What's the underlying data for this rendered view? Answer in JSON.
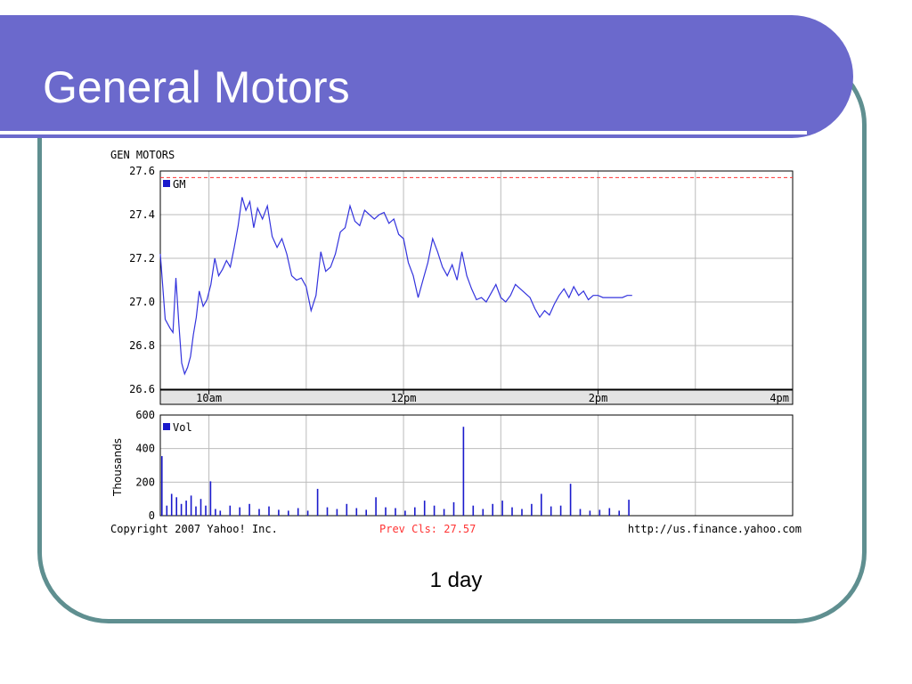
{
  "slide": {
    "title": "General Motors",
    "caption": "1 day"
  },
  "colors": {
    "title_bar": "#6b69cc",
    "frame_border": "#5f8f90",
    "series": "#3333dd",
    "prev_close_line": "#ff3333"
  },
  "chart_data": [
    {
      "type": "line",
      "title": "GEN MOTORS",
      "legend": "GM",
      "legend_position": "top-left",
      "grid": true,
      "ylim": [
        26.6,
        27.6
      ],
      "yticks": [
        "27.6",
        "27.4",
        "27.2",
        "27.0",
        "26.8",
        "26.6"
      ],
      "x_range_hours": [
        9.5,
        16.0
      ],
      "xticks": [
        "10am",
        "12pm",
        "2pm",
        "4pm"
      ],
      "reference_line": {
        "label": "Prev Cls: 27.57",
        "value": 27.57
      },
      "series": [
        {
          "name": "GM",
          "x": [
            9.5,
            9.52,
            9.55,
            9.6,
            9.63,
            9.66,
            9.69,
            9.72,
            9.75,
            9.78,
            9.81,
            9.84,
            9.87,
            9.9,
            9.94,
            9.98,
            10.02,
            10.06,
            10.1,
            10.14,
            10.18,
            10.22,
            10.26,
            10.3,
            10.34,
            10.38,
            10.42,
            10.46,
            10.5,
            10.55,
            10.6,
            10.65,
            10.7,
            10.75,
            10.8,
            10.85,
            10.9,
            10.95,
            11.0,
            11.05,
            11.1,
            11.15,
            11.2,
            11.25,
            11.3,
            11.35,
            11.4,
            11.45,
            11.5,
            11.55,
            11.6,
            11.65,
            11.7,
            11.75,
            11.8,
            11.85,
            11.9,
            11.95,
            12.0,
            12.05,
            12.1,
            12.15,
            12.2,
            12.25,
            12.3,
            12.35,
            12.4,
            12.45,
            12.5,
            12.55,
            12.6,
            12.65,
            12.7,
            12.75,
            12.8,
            12.85,
            12.9,
            12.95,
            13.0,
            13.05,
            13.1,
            13.15,
            13.2,
            13.25,
            13.3,
            13.35,
            13.4,
            13.45,
            13.5,
            13.55,
            13.6,
            13.65,
            13.7,
            13.75,
            13.8,
            13.85,
            13.9,
            13.95,
            14.0,
            14.05,
            14.1,
            14.15,
            14.2,
            14.25,
            14.3,
            14.35
          ],
          "values": [
            27.22,
            27.1,
            26.92,
            26.88,
            26.86,
            27.11,
            26.9,
            26.72,
            26.67,
            26.7,
            26.75,
            26.85,
            26.93,
            27.05,
            26.98,
            27.01,
            27.08,
            27.2,
            27.12,
            27.15,
            27.19,
            27.16,
            27.25,
            27.35,
            27.48,
            27.42,
            27.46,
            27.34,
            27.43,
            27.38,
            27.44,
            27.3,
            27.25,
            27.29,
            27.22,
            27.12,
            27.1,
            27.11,
            27.07,
            26.96,
            27.03,
            27.23,
            27.14,
            27.16,
            27.22,
            27.32,
            27.34,
            27.44,
            27.37,
            27.35,
            27.42,
            27.4,
            27.38,
            27.4,
            27.41,
            27.36,
            27.38,
            27.31,
            27.29,
            27.18,
            27.12,
            27.02,
            27.1,
            27.18,
            27.29,
            27.23,
            27.16,
            27.12,
            27.17,
            27.1,
            27.23,
            27.12,
            27.06,
            27.01,
            27.02,
            27.0,
            27.04,
            27.08,
            27.02,
            27.0,
            27.03,
            27.08,
            27.06,
            27.04,
            27.02,
            26.97,
            26.93,
            26.96,
            26.94,
            26.99,
            27.03,
            27.06,
            27.02,
            27.07,
            27.03,
            27.05,
            27.01,
            27.03,
            27.03,
            27.02,
            27.02,
            27.02,
            27.02,
            27.02,
            27.03,
            27.03
          ]
        }
      ]
    },
    {
      "type": "bar",
      "legend": "Vol",
      "legend_position": "top-left",
      "grid": true,
      "ylabel": "Thousands",
      "ylim": [
        0,
        600
      ],
      "yticks": [
        "600",
        "400",
        "200",
        "0"
      ],
      "x_range_hours": [
        9.5,
        16.0
      ],
      "series": [
        {
          "name": "Vol",
          "x": [
            9.5,
            9.55,
            9.6,
            9.65,
            9.7,
            9.75,
            9.8,
            9.85,
            9.9,
            9.95,
            10.0,
            10.05,
            10.1,
            10.2,
            10.3,
            10.4,
            10.5,
            10.6,
            10.7,
            10.8,
            10.9,
            11.0,
            11.1,
            11.2,
            11.3,
            11.4,
            11.5,
            11.6,
            11.7,
            11.8,
            11.9,
            12.0,
            12.1,
            12.2,
            12.3,
            12.4,
            12.5,
            12.6,
            12.7,
            12.8,
            12.9,
            13.0,
            13.1,
            13.2,
            13.3,
            13.4,
            13.5,
            13.6,
            13.7,
            13.8,
            13.9,
            14.0,
            14.1,
            14.2,
            14.3
          ],
          "values": [
            355,
            60,
            130,
            110,
            70,
            90,
            120,
            55,
            100,
            60,
            205,
            40,
            30,
            60,
            50,
            70,
            40,
            55,
            35,
            30,
            45,
            30,
            160,
            50,
            40,
            70,
            45,
            35,
            110,
            50,
            45,
            30,
            50,
            90,
            60,
            40,
            80,
            530,
            60,
            40,
            70,
            90,
            50,
            40,
            70,
            130,
            55,
            60,
            190,
            40,
            30,
            35,
            45,
            30,
            95
          ]
        }
      ]
    }
  ],
  "footer": {
    "copyright": "Copyright 2007 Yahoo! Inc.",
    "prev_close": "Prev Cls: 27.57",
    "url": "http://us.finance.yahoo.com"
  }
}
